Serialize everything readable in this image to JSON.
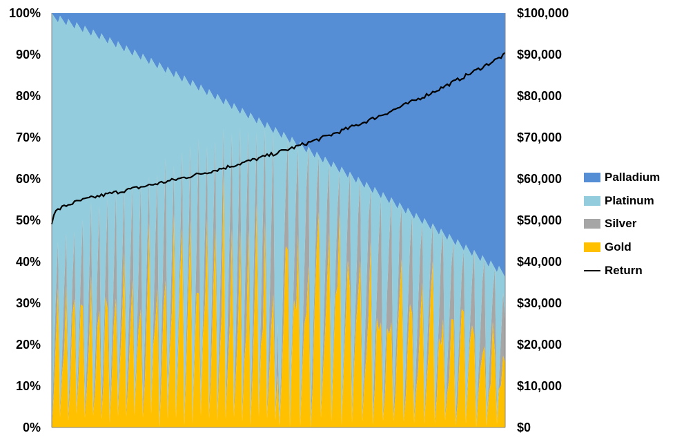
{
  "chart_data": {
    "type": "area",
    "subtype": "stacked-100-percent-with-secondary-line",
    "title": "",
    "xlabel": "",
    "ylabel": "",
    "x_count": 220,
    "ylim_left": [
      0,
      100
    ],
    "ylim_right": [
      0,
      100000
    ],
    "left_ticks": [
      "0%",
      "10%",
      "20%",
      "30%",
      "40%",
      "50%",
      "60%",
      "70%",
      "80%",
      "90%",
      "100%"
    ],
    "right_ticks": [
      "$0",
      "$10,000",
      "$20,000",
      "$30,000",
      "$40,000",
      "$50,000",
      "$60,000",
      "$70,000",
      "$80,000",
      "$90,000",
      "$100,000"
    ],
    "grid": false,
    "legend_position": "right",
    "series": [
      {
        "name": "Palladium",
        "axis": "left",
        "color": "#558ED5"
      },
      {
        "name": "Platinum",
        "axis": "left",
        "color": "#93CDDD"
      },
      {
        "name": "Silver",
        "axis": "left",
        "color": "#A6A6A6"
      },
      {
        "name": "Gold",
        "axis": "left",
        "color": "#FFC000"
      },
      {
        "name": "Return",
        "axis": "right",
        "color": "#000000",
        "values_approx": "rises from about $49,500 at the first point to about $90,000 at the last point (≈$62,000 at 5%, $66,000 at 20%, $70,000 at 35%, $74,000 at 50%, $78,000 at 65%, $84,000 at 80%, $90,000 at 100% of the x range)"
      }
    ],
    "composition_note": "Allocation combinations swept across x: repeated saw-tooth cycles where Gold/Silver shares rise to ~100% then reset, Palladium share grows steadily from ~0% to ~60% across the x range, Platinum fills the remainder."
  },
  "legend": {
    "items": [
      {
        "label": "Palladium",
        "color": "#558ED5"
      },
      {
        "label": "Platinum",
        "color": "#93CDDD"
      },
      {
        "label": "Silver",
        "color": "#A6A6A6"
      },
      {
        "label": "Gold",
        "color": "#FFC000"
      },
      {
        "label": "Return",
        "color": "#000000"
      }
    ]
  }
}
